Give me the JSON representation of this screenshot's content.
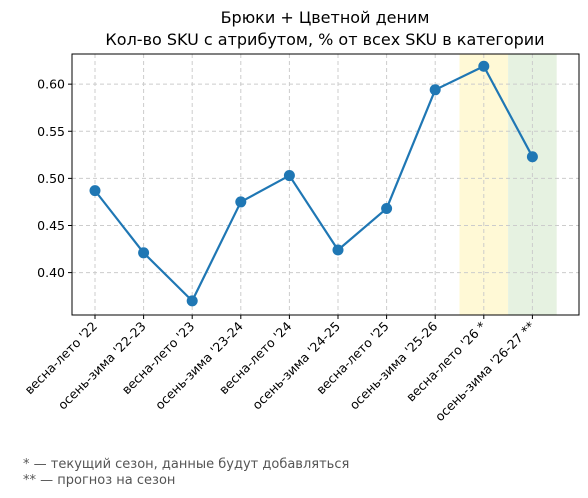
{
  "chart_data": {
    "type": "line",
    "title": "Брюки + Цветной деним",
    "subtitle": "Кол-во SKU с атрибутом, % от всех SKU в категории",
    "xlabel": "",
    "ylabel": "",
    "categories": [
      "весна-лето '22",
      "осень-зима '22-23",
      "весна-лето '23",
      "осень-зима '23-24",
      "весна-лето '24",
      "осень-зима '24-25",
      "весна-лето '25",
      "осень-зима '25-26",
      "весна-лето '26 *",
      "осень-зима '26-27 **"
    ],
    "series": [
      {
        "values": [
          0.487,
          0.421,
          0.37,
          0.475,
          0.503,
          0.424,
          0.468,
          0.594,
          0.619,
          0.523
        ]
      }
    ],
    "ylim": [
      0.355,
      0.632
    ],
    "yticks": [
      "0.40",
      "0.45",
      "0.50",
      "0.55",
      "0.60"
    ],
    "grid": true,
    "highlights": [
      {
        "category": "весна-лето '26 *",
        "color": "#fff9d6"
      },
      {
        "category": "осень-зима '26-27 **",
        "color": "#e6f2e1"
      }
    ],
    "line_color": "#1f77b4"
  },
  "footnotes": [
    "* — текущий сезон, данные будут добавляться",
    "** — прогноз на сезон"
  ]
}
